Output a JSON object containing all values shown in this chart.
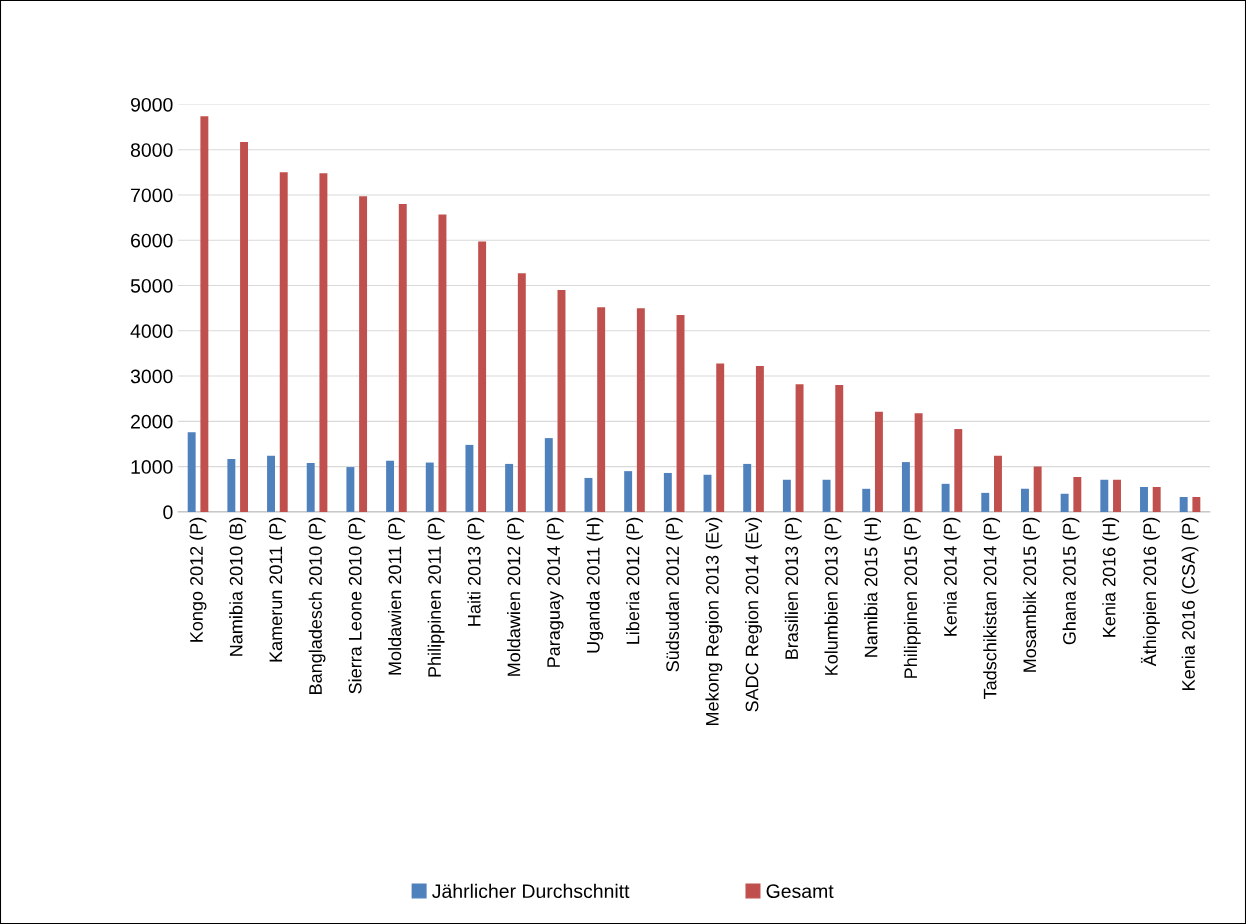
{
  "chart_data": {
    "type": "bar",
    "categories": [
      "Kongo 2012 (P)",
      "Namibia 2010 (B)",
      "Kamerun 2011 (P)",
      "Bangladesch 2010 (P)",
      "Sierra Leone 2010 (P)",
      "Moldawien 2011 (P)",
      "Philippinen 2011 (P)",
      "Haiti 2013 (P)",
      "Moldawien 2012 (P)",
      "Paraguay 2014 (P)",
      "Uganda 2011 (H)",
      "Liberia 2012 (P)",
      "Südsudan 2012 (P)",
      "Mekong Region 2013 (Ev)",
      "SADC Region 2014 (Ev)",
      "Brasilien 2013 (P)",
      "Kolumbien 2013 (P)",
      "Namibia 2015 (H)",
      "Philippinen 2015 (P)",
      "Kenia 2014 (P)",
      "Tadschikistan 2014 (P)",
      "Mosambik 2015 (P)",
      "Ghana 2015 (P)",
      "Kenia 2016 (H)",
      "Äthiopien 2016 (P)",
      "Kenia 2016 (CSA) (P)"
    ],
    "series": [
      {
        "name": "Jährlicher Durchschnitt",
        "color": "#4f81bd",
        "values": [
          1760,
          1170,
          1240,
          1080,
          990,
          1130,
          1090,
          1480,
          1060,
          1630,
          750,
          900,
          860,
          820,
          1060,
          710,
          710,
          510,
          1100,
          620,
          420,
          510,
          400,
          710,
          550,
          330
        ]
      },
      {
        "name": "Gesamt",
        "color": "#c0504d",
        "values": [
          8740,
          8170,
          7500,
          7480,
          6970,
          6800,
          6570,
          5970,
          5270,
          4900,
          4520,
          4500,
          4350,
          3280,
          3220,
          2820,
          2800,
          2210,
          2180,
          1830,
          1240,
          1000,
          770,
          710,
          550,
          330
        ]
      }
    ],
    "ylim": [
      0,
      9000
    ],
    "yticks": [
      0,
      1000,
      2000,
      3000,
      4000,
      5000,
      6000,
      7000,
      8000,
      9000
    ],
    "grid": "y",
    "legend": "bottom"
  }
}
